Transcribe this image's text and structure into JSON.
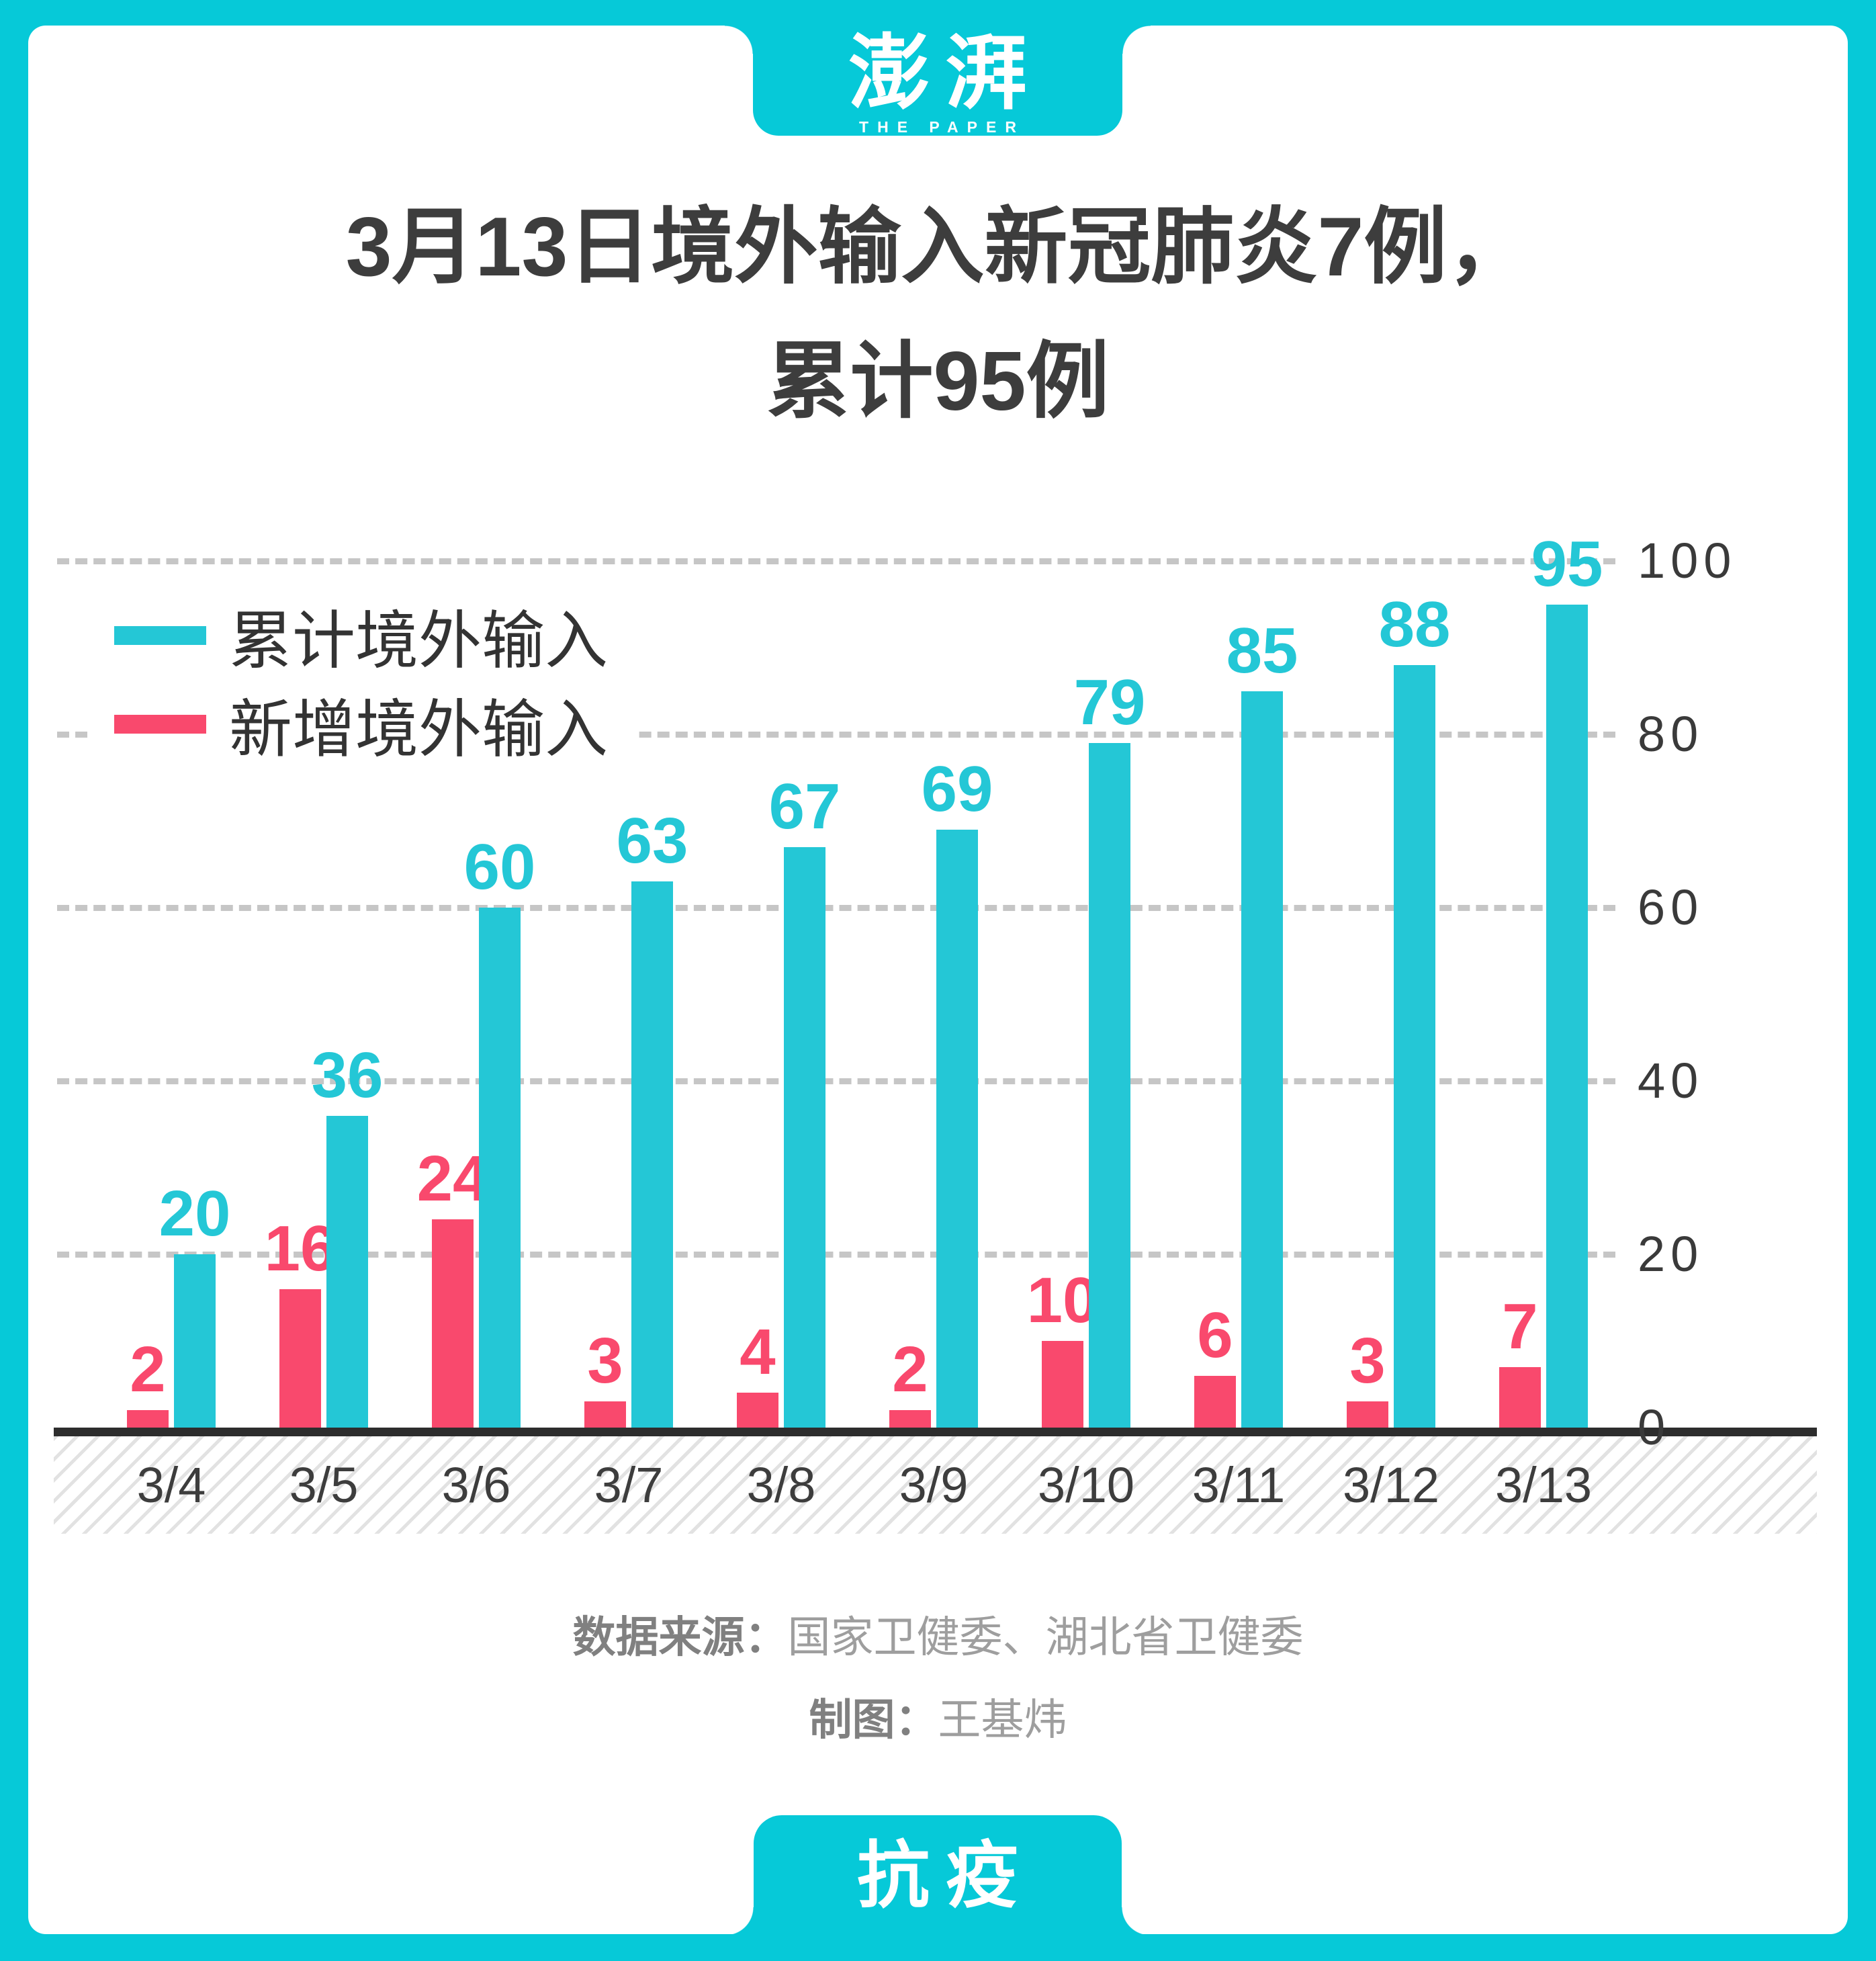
{
  "brand": {
    "logo_zh": "澎湃",
    "logo_en": "THE PAPER",
    "footer_tab": "抗疫"
  },
  "title": {
    "line1": "3月13日境外输入新冠肺炎7例，",
    "line2": "累计95例"
  },
  "legend": [
    {
      "label": "累计境外输入",
      "color": "#24c7d6"
    },
    {
      "label": "新增境外输入",
      "color": "#f9496d"
    }
  ],
  "chart_data": {
    "type": "bar",
    "title": "3月13日境外输入新冠肺炎7例，累计95例",
    "categories": [
      "3/4",
      "3/5",
      "3/6",
      "3/7",
      "3/8",
      "3/9",
      "3/10",
      "3/11",
      "3/12",
      "3/13"
    ],
    "series": [
      {
        "name": "累计境外输入",
        "color": "#24c7d6",
        "values": [
          20,
          36,
          60,
          63,
          67,
          69,
          79,
          85,
          88,
          95
        ]
      },
      {
        "name": "新增境外输入",
        "color": "#f9496d",
        "values": [
          2,
          16,
          24,
          3,
          4,
          2,
          10,
          6,
          3,
          7
        ]
      }
    ],
    "xlabel": "",
    "ylabel": "",
    "y_ticks": [
      0,
      20,
      40,
      60,
      80,
      100
    ],
    "ylim": [
      0,
      100
    ],
    "grid": "dashed horizontal",
    "legend_position": "top-left",
    "value_labels": true,
    "y_axis_side": "right"
  },
  "source": {
    "label": "数据来源：",
    "value": "国家卫健委、湖北省卫健委"
  },
  "credit": {
    "label": "制图：",
    "value": "王基炜"
  },
  "colors": {
    "frame_teal": "#06c9d8",
    "bar_teal": "#24c7d6",
    "bar_pink": "#f9496d",
    "gridline": "#c6c6c6",
    "axis_line": "#2d2d2d",
    "title_text": "#3d3d3d",
    "tick_text": "#3a3a3a",
    "source_label": "#808080",
    "source_value": "#9e9e9e"
  }
}
